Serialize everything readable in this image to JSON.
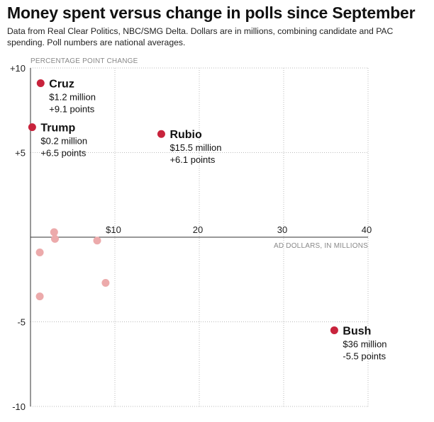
{
  "title": "Money spent versus change in polls since September",
  "subtitle": "Data from Real Clear Politics, NBC/SMG Delta. Dollars are in millions, combining candidate and PAC spending. Poll numbers are national averages.",
  "colors": {
    "highlight": "#c8233c",
    "muted": "#ecaaab",
    "grid": "#bbbbbb",
    "axis": "#333333"
  },
  "chart_data": {
    "type": "scatter",
    "title": "Money spent versus change in polls since September",
    "xlabel": "AD DOLLARS, IN MILLIONS",
    "ylabel": "PERCENTAGE POINT CHANGE",
    "xlim": [
      0,
      40
    ],
    "ylim": [
      -10,
      10
    ],
    "x_ticks": [
      {
        "value": 10,
        "label": "$10"
      },
      {
        "value": 20,
        "label": "20"
      },
      {
        "value": 30,
        "label": "30"
      },
      {
        "value": 40,
        "label": "40"
      }
    ],
    "y_ticks": [
      {
        "value": 10,
        "label": "+10"
      },
      {
        "value": 5,
        "label": "+5"
      },
      {
        "value": -5,
        "label": "-5"
      },
      {
        "value": -10,
        "label": "-10"
      }
    ],
    "grid": true,
    "highlighted": [
      {
        "name": "Cruz",
        "x": 1.2,
        "y": 9.1,
        "money": "$1.2 million",
        "points": "+9.1 points"
      },
      {
        "name": "Trump",
        "x": 0.2,
        "y": 6.5,
        "money": "$0.2 million",
        "points": "+6.5 points"
      },
      {
        "name": "Rubio",
        "x": 15.5,
        "y": 6.1,
        "money": "$15.5 million",
        "points": "+6.1 points"
      },
      {
        "name": "Bush",
        "x": 36,
        "y": -5.5,
        "money": "$36 million",
        "points": "-5.5 points"
      }
    ],
    "others": [
      {
        "x": 2.8,
        "y": 0.3
      },
      {
        "x": 2.9,
        "y": -0.1
      },
      {
        "x": 1.1,
        "y": -0.9
      },
      {
        "x": 7.9,
        "y": -0.2
      },
      {
        "x": 8.9,
        "y": -2.7
      },
      {
        "x": 1.1,
        "y": -3.5
      }
    ]
  }
}
